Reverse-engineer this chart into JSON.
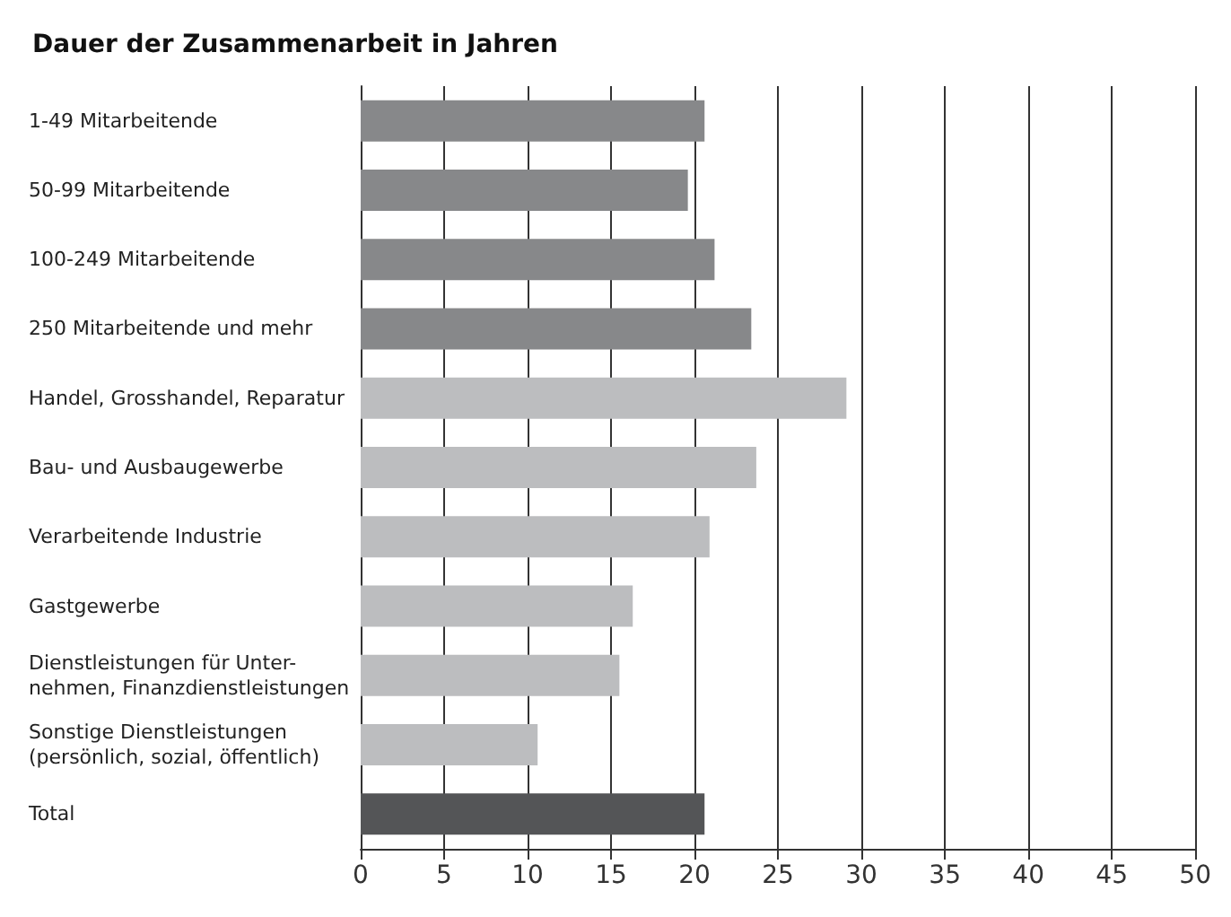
{
  "chart_data": {
    "type": "bar",
    "orientation": "horizontal",
    "title": "Dauer der Zusammenarbeit in Jahren",
    "categories": [
      "1-49 Mitarbeitende",
      "50-99 Mitarbeitende",
      "100-249 Mitarbeitende",
      "250 Mitarbeitende und mehr",
      "Handel, Grosshandel, Reparatur",
      "Bau- und Ausbaugewerbe",
      "Verarbeitende Industrie",
      "Gastgewerbe",
      "Dienstleistungen für Unter-\nnehmen, Finanzdienstleistungen",
      "Sonstige Dienstleistungen\n(persönlich, sozial, öffentlich)",
      "Total"
    ],
    "values": [
      20.6,
      19.6,
      21.2,
      23.4,
      29.1,
      23.7,
      20.9,
      16.3,
      15.5,
      10.6,
      20.6
    ],
    "colors": [
      "#87888a",
      "#87888a",
      "#87888a",
      "#87888a",
      "#bcbdbf",
      "#bcbdbf",
      "#bcbdbf",
      "#bcbdbf",
      "#bcbdbf",
      "#bcbdbf",
      "#545557"
    ],
    "xlim": [
      0,
      50
    ],
    "xticks": [
      0,
      5,
      10,
      15,
      20,
      25,
      30,
      35,
      40,
      45,
      50
    ],
    "grid": "x"
  }
}
